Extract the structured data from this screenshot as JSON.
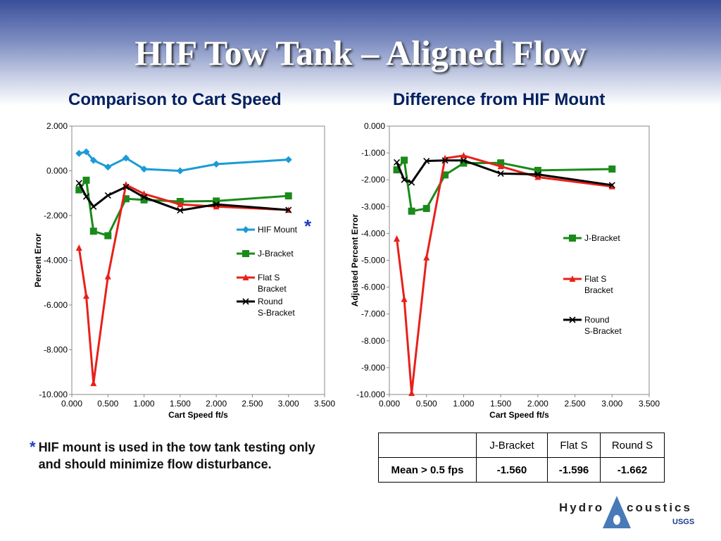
{
  "slide": {
    "title": "HIF Tow Tank – Aligned Flow",
    "left_subtitle": "Comparison to Cart Speed",
    "right_subtitle": "Difference from HIF Mount",
    "footnote_star": "*",
    "footnote": "HIF mount is used in the tow tank testing only and should minimize flow disturbance.",
    "chart_star": "*"
  },
  "chart_data": [
    {
      "type": "line",
      "title": "Comparison to Cart Speed",
      "xlabel": "Cart Speed ft/s",
      "ylabel": "Percent Error",
      "xlim": [
        0,
        3.5
      ],
      "ylim": [
        -10,
        2
      ],
      "xticks": [
        "0.000",
        "0.500",
        "1.000",
        "1.500",
        "2.000",
        "2.500",
        "3.000",
        "3.500"
      ],
      "yticks": [
        "2.000",
        "0.000",
        "-2.000",
        "-4.000",
        "-6.000",
        "-8.000",
        "-10.000"
      ],
      "grid": false,
      "legend": "right",
      "series": [
        {
          "name": "HIF Mount",
          "color": "#1a9bd7",
          "marker": "diamond",
          "x": [
            0.1,
            0.2,
            0.3,
            0.5,
            0.75,
            1.0,
            1.5,
            2.0,
            3.0
          ],
          "y": [
            0.78,
            0.85,
            0.47,
            0.17,
            0.57,
            0.08,
            0.0,
            0.3,
            0.5
          ]
        },
        {
          "name": "J-Bracket",
          "color": "#1a8a1a",
          "marker": "square",
          "x": [
            0.1,
            0.2,
            0.3,
            0.5,
            0.75,
            1.0,
            1.5,
            2.0,
            3.0
          ],
          "y": [
            -0.85,
            -0.42,
            -2.7,
            -2.9,
            -1.25,
            -1.3,
            -1.37,
            -1.35,
            -1.12
          ]
        },
        {
          "name": "Flat S Bracket",
          "color": "#e8201a",
          "marker": "triangle",
          "x": [
            0.1,
            0.2,
            0.3,
            0.5,
            0.75,
            1.0,
            1.5,
            2.0,
            3.0
          ],
          "y": [
            -3.45,
            -5.6,
            -9.5,
            -4.73,
            -0.62,
            -1.03,
            -1.5,
            -1.6,
            -1.75
          ]
        },
        {
          "name": "Round S-Bracket",
          "color": "#000000",
          "marker": "x",
          "x": [
            0.1,
            0.2,
            0.3,
            0.5,
            0.75,
            1.0,
            1.5,
            2.0,
            3.0
          ],
          "y": [
            -0.55,
            -1.15,
            -1.6,
            -1.1,
            -0.72,
            -1.18,
            -1.77,
            -1.5,
            -1.75
          ]
        }
      ]
    },
    {
      "type": "line",
      "title": "Difference from HIF Mount",
      "xlabel": "Cart Speed ft/s",
      "ylabel": "Adjusted Percent Error",
      "xlim": [
        0,
        3.5
      ],
      "ylim": [
        -10,
        0
      ],
      "xticks": [
        "0.000",
        "0.500",
        "1.000",
        "1.500",
        "2.000",
        "2.500",
        "3.000",
        "3.500"
      ],
      "yticks": [
        "0.000",
        "-1.000",
        "-2.000",
        "-3.000",
        "-4.000",
        "-5.000",
        "-6.000",
        "-7.000",
        "-8.000",
        "-9.000",
        "-10.000"
      ],
      "grid": false,
      "legend": "right",
      "series": [
        {
          "name": "J-Bracket",
          "color": "#1a8a1a",
          "marker": "square",
          "x": [
            0.1,
            0.2,
            0.3,
            0.5,
            0.75,
            1.0,
            1.5,
            2.0,
            3.0
          ],
          "y": [
            -1.63,
            -1.27,
            -3.17,
            -3.07,
            -1.82,
            -1.38,
            -1.37,
            -1.65,
            -1.6
          ]
        },
        {
          "name": "Flat S Bracket",
          "color": "#e8201a",
          "marker": "triangle",
          "x": [
            0.1,
            0.2,
            0.3,
            0.5,
            0.75,
            1.0,
            1.5,
            2.0,
            3.0
          ],
          "y": [
            -4.2,
            -6.45,
            -9.95,
            -4.9,
            -1.2,
            -1.1,
            -1.5,
            -1.9,
            -2.25
          ]
        },
        {
          "name": "Round S-Bracket",
          "color": "#000000",
          "marker": "x",
          "x": [
            0.1,
            0.2,
            0.3,
            0.5,
            0.75,
            1.0,
            1.5,
            2.0,
            3.0
          ],
          "y": [
            -1.35,
            -2.0,
            -2.1,
            -1.3,
            -1.28,
            -1.28,
            -1.77,
            -1.8,
            -2.2
          ]
        }
      ]
    }
  ],
  "table": {
    "headers": [
      "",
      "J-Bracket",
      "Flat S",
      "Round S"
    ],
    "row_label": "Mean > 0.5 fps",
    "values": [
      "-1.560",
      "-1.596",
      "-1.662"
    ]
  },
  "logo": {
    "text_left": "Hydro",
    "text_right": "coustics",
    "sub": "USGS"
  }
}
